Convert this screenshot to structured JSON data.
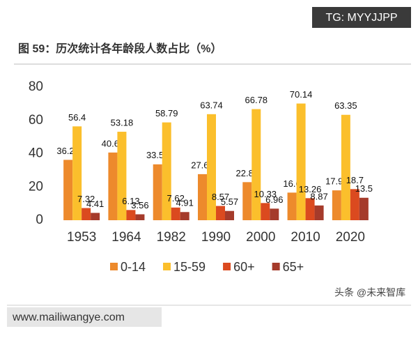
{
  "tag": "TG: MYYJJPP",
  "source_mark": "头条 @未来智库",
  "site": "www.mailiwangye.com",
  "chart_data": {
    "type": "bar",
    "title": "图 59：历次统计各年龄段人数占比（%）",
    "categories": [
      "1953",
      "1964",
      "1982",
      "1990",
      "2000",
      "2010",
      "2020"
    ],
    "series": [
      {
        "name": "0-14",
        "color": "#ed8a2c",
        "values": [
          36.28,
          40.69,
          33.59,
          27.69,
          22.89,
          16.6,
          17.95
        ]
      },
      {
        "name": "15-59",
        "color": "#fbbf2c",
        "values": [
          56.4,
          53.18,
          58.79,
          63.74,
          66.78,
          70.14,
          63.35
        ]
      },
      {
        "name": "60+",
        "color": "#db4a1f",
        "values": [
          7.32,
          6.13,
          7.62,
          8.57,
          10.33,
          13.26,
          18.7
        ]
      },
      {
        "name": "65+",
        "color": "#a53b2b",
        "values": [
          4.41,
          3.56,
          4.91,
          5.57,
          6.96,
          8.87,
          13.5
        ]
      }
    ],
    "ylim": [
      0,
      80
    ],
    "yticks": [
      0,
      20,
      40,
      60,
      80
    ],
    "grid": false,
    "legend": "bottom"
  }
}
